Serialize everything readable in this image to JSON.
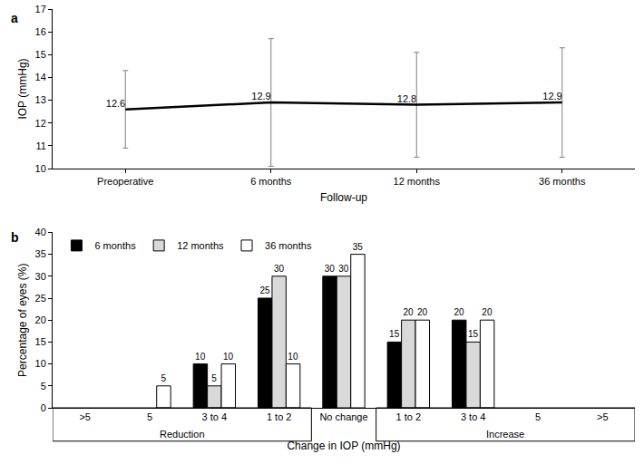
{
  "chart_data": [
    {
      "type": "line",
      "title": "a",
      "categories": [
        "Preoperative",
        "6 months",
        "12 months",
        "36 months"
      ],
      "values": [
        12.6,
        12.9,
        12.8,
        12.9
      ],
      "errors": [
        1.7,
        2.8,
        2.3,
        2.4
      ],
      "color": "#000000",
      "x_label": "Follow-up",
      "y_label": "IOP (mmHg)",
      "ylim": [
        10,
        17
      ],
      "yticks": [
        10,
        11,
        12,
        13,
        14,
        15,
        16,
        17
      ],
      "data_labels": true,
      "grid": false
    },
    {
      "type": "bar",
      "title": "b",
      "categories": [
        ">5",
        "5",
        "3 to 4",
        "1 to 2",
        "No change",
        "1 to 2",
        "3 to 4",
        "5",
        ">5"
      ],
      "series": [
        {
          "name": "6 months",
          "color": "#000000",
          "values": [
            null,
            null,
            10,
            25,
            30,
            15,
            20,
            null,
            null
          ]
        },
        {
          "name": "12 months",
          "color": "#d9d9d9",
          "values": [
            null,
            null,
            5,
            30,
            30,
            20,
            15,
            null,
            null
          ]
        },
        {
          "name": "36 months",
          "color": "#ffffff",
          "values": [
            null,
            5,
            10,
            10,
            35,
            20,
            20,
            null,
            null
          ]
        }
      ],
      "groups": [
        {
          "label": "Reduction",
          "span": [
            0,
            3
          ]
        },
        {
          "label": "Increase",
          "span": [
            5,
            8
          ]
        }
      ],
      "x_label": "Change in IOP (mmHg)",
      "y_label": "Percentage of eyes (%)",
      "ylim": [
        0,
        40
      ],
      "yticks": [
        0,
        5,
        10,
        15,
        20,
        25,
        30,
        35,
        40
      ],
      "data_labels": true,
      "legend": "top left",
      "grid": false
    }
  ]
}
